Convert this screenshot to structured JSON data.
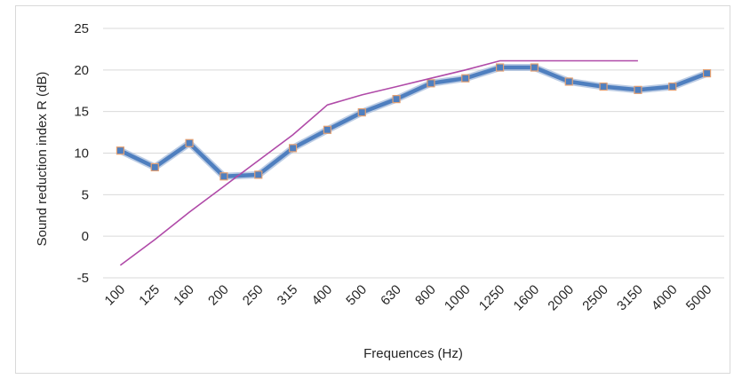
{
  "chart_data": {
    "type": "line",
    "xlabel": "Frequences (Hz)",
    "ylabel": "Sound reduction index R (dB)",
    "categories": [
      "100",
      "125",
      "160",
      "200",
      "250",
      "315",
      "400",
      "500",
      "630",
      "800",
      "1000",
      "1250",
      "1600",
      "2000",
      "2500",
      "3150",
      "4000",
      "5000"
    ],
    "ylim": [
      -5,
      25
    ],
    "yticks": [
      "25",
      "20",
      "15",
      "10",
      "5",
      "0",
      "-5"
    ],
    "grid": true,
    "legend": "none",
    "series": [
      {
        "values": [
          10.3,
          8.3,
          11.2,
          7.2,
          7.4,
          10.6,
          12.8,
          14.9,
          16.5,
          18.4,
          19.0,
          20.3,
          20.3,
          18.6,
          18.0,
          17.6,
          18.0,
          19.6
        ],
        "color": "#4f7fbf",
        "marker_color": "#e3a073"
      },
      {
        "values": [
          -3.5,
          -0.4,
          2.9,
          6.0,
          9.1,
          12.2,
          15.8,
          17.0,
          18.0,
          19.0,
          20.0,
          21.1,
          21.1,
          21.1,
          21.1,
          21.1,
          null,
          null
        ],
        "color": "#b04aa8"
      }
    ]
  }
}
